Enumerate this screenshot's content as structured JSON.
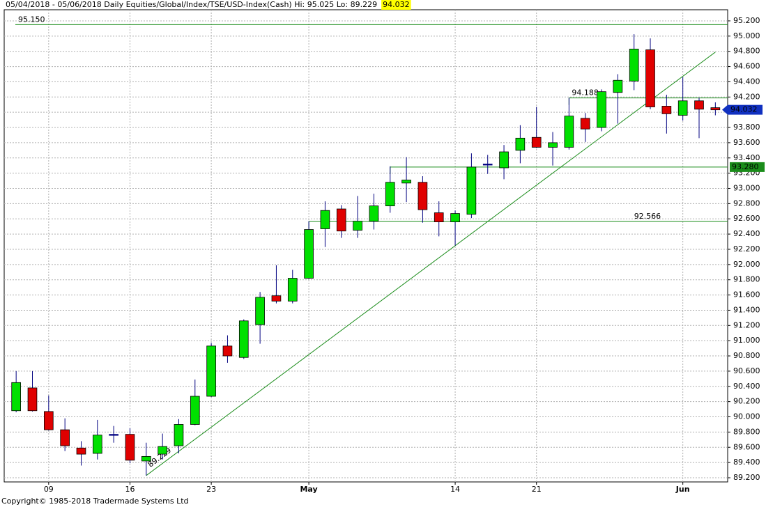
{
  "chart_data": {
    "type": "candlestick",
    "title": "05/04/2018 - 05/06/2018  Daily  Equities/Global/Index/TSE/USD-Index(Cash)  Hi: 95.025  Lo: 89.229",
    "last_label": "94.032",
    "footer": "Copyright© 1985-2018 Tradermade Systems Ltd",
    "categories": [
      null,
      null,
      "09",
      null,
      null,
      null,
      null,
      "16",
      null,
      null,
      null,
      null,
      "23",
      null,
      null,
      null,
      null,
      null,
      "May",
      null,
      null,
      null,
      null,
      null,
      null,
      null,
      null,
      "14",
      null,
      null,
      null,
      null,
      "21",
      null,
      null,
      null,
      null,
      null,
      null,
      null,
      null,
      "Jun",
      null,
      null
    ],
    "open": [
      90.08,
      90.38,
      90.07,
      89.83,
      89.59,
      89.52,
      89.76,
      89.77,
      89.42,
      89.51,
      89.62,
      89.9,
      90.27,
      90.93,
      90.78,
      91.21,
      91.59,
      91.52,
      91.82,
      92.47,
      92.73,
      92.45,
      92.57,
      92.77,
      93.07,
      93.08,
      92.68,
      92.56,
      92.66,
      93.31,
      93.27,
      93.5,
      93.67,
      93.54,
      93.54,
      93.92,
      93.8,
      94.26,
      94.41,
      94.82,
      94.08,
      93.96,
      94.15,
      94.06
    ],
    "high": [
      90.6,
      90.6,
      90.28,
      89.98,
      89.68,
      89.96,
      89.88,
      89.85,
      89.66,
      89.78,
      89.97,
      90.49,
      90.97,
      91.07,
      91.28,
      91.64,
      91.99,
      91.93,
      92.57,
      92.83,
      92.78,
      92.9,
      92.93,
      93.29,
      93.41,
      93.16,
      92.83,
      92.71,
      93.46,
      93.44,
      93.57,
      93.83,
      94.07,
      93.74,
      94.19,
      93.99,
      94.3,
      94.5,
      95.025,
      94.97,
      94.23,
      94.46,
      94.19,
      94.13
    ],
    "low": [
      90.06,
      90.07,
      89.82,
      89.55,
      89.36,
      89.44,
      89.66,
      89.39,
      89.229,
      89.44,
      89.52,
      89.89,
      90.26,
      90.71,
      90.76,
      90.96,
      91.49,
      91.49,
      91.81,
      92.23,
      92.35,
      92.35,
      92.46,
      92.68,
      92.82,
      92.55,
      92.37,
      92.25,
      92.61,
      93.19,
      93.12,
      93.33,
      93.53,
      93.3,
      93.51,
      93.61,
      93.75,
      93.85,
      94.29,
      94.04,
      93.72,
      93.89,
      93.66,
      93.96
    ],
    "close": [
      90.45,
      90.08,
      89.83,
      89.62,
      89.51,
      89.76,
      89.77,
      89.43,
      89.48,
      89.61,
      89.9,
      90.27,
      90.93,
      90.8,
      91.26,
      91.57,
      91.52,
      91.82,
      92.46,
      92.71,
      92.44,
      92.57,
      92.77,
      93.08,
      93.11,
      92.72,
      92.56,
      92.67,
      93.28,
      93.32,
      93.48,
      93.66,
      93.54,
      93.6,
      93.95,
      93.78,
      94.27,
      94.42,
      94.83,
      94.07,
      93.98,
      94.15,
      94.04,
      94.032
    ],
    "up_color": "#00e000",
    "down_color": "#e00000",
    "doji_color": "#000080",
    "wick_color": "#000080",
    "ylim": [
      89.145,
      95.346
    ],
    "yticks": [
      {
        "value": 89.2,
        "label": "89.200"
      },
      {
        "value": 89.4,
        "label": "89.400"
      },
      {
        "value": 89.6,
        "label": "89.600"
      },
      {
        "value": 89.8,
        "label": "89.800"
      },
      {
        "value": 90.0,
        "label": "90.000"
      },
      {
        "value": 90.2,
        "label": "90.200"
      },
      {
        "value": 90.4,
        "label": "90.400"
      },
      {
        "value": 90.6,
        "label": "90.600"
      },
      {
        "value": 90.8,
        "label": "90.800"
      },
      {
        "value": 91.0,
        "label": "91.000"
      },
      {
        "value": 91.2,
        "label": "91.200"
      },
      {
        "value": 91.4,
        "label": "91.400"
      },
      {
        "value": 91.6,
        "label": "91.600"
      },
      {
        "value": 91.8,
        "label": "91.800"
      },
      {
        "value": 92.0,
        "label": "92.000"
      },
      {
        "value": 92.2,
        "label": "92.200"
      },
      {
        "value": 92.4,
        "label": "92.400"
      },
      {
        "value": 92.6,
        "label": "92.600"
      },
      {
        "value": 92.8,
        "label": "92.800"
      },
      {
        "value": 93.0,
        "label": "93.000"
      },
      {
        "value": 93.2,
        "label": "93.200"
      },
      {
        "value": 93.4,
        "label": "93.400"
      },
      {
        "value": 93.6,
        "label": "93.600"
      },
      {
        "value": 93.8,
        "label": "93.800"
      },
      {
        "value": 94.0,
        "label": "94.000"
      },
      {
        "value": 94.2,
        "label": "94.200"
      },
      {
        "value": 94.4,
        "label": "94.400"
      },
      {
        "value": 94.6,
        "label": "94.600"
      },
      {
        "value": 94.8,
        "label": "94.800"
      },
      {
        "value": 95.0,
        "label": "95.000"
      },
      {
        "value": 95.2,
        "label": "95.200"
      }
    ],
    "grid": true,
    "hlines": [
      {
        "value": 95.15,
        "label": "95.150",
        "from": 0,
        "label_pos": "left"
      },
      {
        "value": 94.188,
        "label": "94.188",
        "from": 34,
        "label_pos": "left"
      },
      {
        "value": 93.28,
        "label": "93.280",
        "from": 23,
        "label_pos": "axis"
      },
      {
        "value": 92.566,
        "label": "92.566",
        "from": 18,
        "label_pos": "right"
      }
    ],
    "line_color": "#1a8c1a",
    "trendline": {
      "x": [
        8,
        43
      ],
      "values": [
        89.229,
        94.79
      ],
      "label": "89.229"
    }
  }
}
